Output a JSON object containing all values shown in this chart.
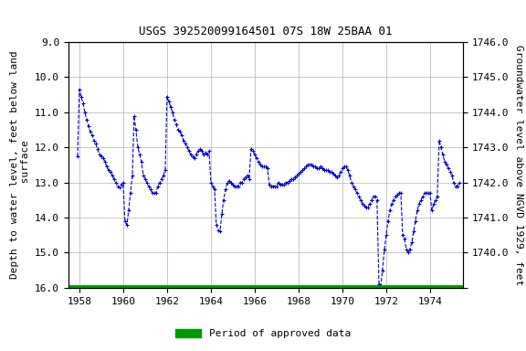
{
  "title": "USGS 392520099164501 07S 18W 25BAA 01",
  "ylabel_left": "Depth to water level, feet below land\n surface",
  "ylabel_right": "Groundwater level above NGVD 1929, feet",
  "ylim_left": [
    9.0,
    16.0
  ],
  "xlim": [
    1957.5,
    1975.5
  ],
  "yticks_left": [
    9.0,
    10.0,
    11.0,
    12.0,
    13.0,
    14.0,
    15.0,
    16.0
  ],
  "yticks_right_labels": [
    "1746.0",
    "1745.0",
    "1744.0",
    "1743.0",
    "1742.0",
    "1741.0",
    "1740.0",
    ""
  ],
  "yticks_right_pos": [
    9.0,
    10.0,
    11.0,
    12.0,
    13.0,
    14.0,
    15.0,
    16.0
  ],
  "xticks": [
    1958,
    1960,
    1962,
    1964,
    1966,
    1968,
    1970,
    1972,
    1974
  ],
  "line_color": "#0000cc",
  "marker": "+",
  "linestyle": "--",
  "green_line_y": 16.0,
  "legend_label": "Period of approved data",
  "legend_color": "#009900",
  "background_color": "#ffffff",
  "grid_color": "#b0b0b0",
  "title_fontsize": 9,
  "axis_label_fontsize": 8,
  "tick_fontsize": 8,
  "data_x": [
    1957.92,
    1958.0,
    1958.08,
    1958.17,
    1958.25,
    1958.33,
    1958.42,
    1958.5,
    1958.58,
    1958.67,
    1958.75,
    1958.83,
    1958.92,
    1959.0,
    1959.08,
    1959.17,
    1959.25,
    1959.33,
    1959.42,
    1959.5,
    1959.58,
    1959.67,
    1959.75,
    1959.83,
    1959.92,
    1960.0,
    1960.08,
    1960.17,
    1960.25,
    1960.33,
    1960.42,
    1960.5,
    1960.58,
    1960.67,
    1960.75,
    1960.83,
    1960.92,
    1961.0,
    1961.08,
    1961.17,
    1961.25,
    1961.33,
    1961.42,
    1961.5,
    1961.58,
    1961.67,
    1961.75,
    1961.83,
    1961.92,
    1962.0,
    1962.08,
    1962.17,
    1962.25,
    1962.33,
    1962.42,
    1962.5,
    1962.58,
    1962.67,
    1962.75,
    1962.83,
    1962.92,
    1963.0,
    1963.08,
    1963.17,
    1963.25,
    1963.33,
    1963.42,
    1963.5,
    1963.58,
    1963.67,
    1963.75,
    1963.83,
    1963.92,
    1964.0,
    1964.08,
    1964.17,
    1964.25,
    1964.33,
    1964.42,
    1964.5,
    1964.58,
    1964.67,
    1964.75,
    1964.83,
    1964.92,
    1965.0,
    1965.08,
    1965.17,
    1965.25,
    1965.33,
    1965.42,
    1965.5,
    1965.58,
    1965.67,
    1965.75,
    1965.83,
    1965.92,
    1966.0,
    1966.08,
    1966.17,
    1966.25,
    1966.33,
    1966.42,
    1966.5,
    1966.58,
    1966.67,
    1966.75,
    1966.83,
    1966.92,
    1967.0,
    1967.08,
    1967.17,
    1967.25,
    1967.33,
    1967.42,
    1967.5,
    1967.58,
    1967.67,
    1967.75,
    1967.83,
    1967.92,
    1968.0,
    1968.08,
    1968.17,
    1968.25,
    1968.33,
    1968.42,
    1968.5,
    1968.58,
    1968.67,
    1968.75,
    1968.83,
    1968.92,
    1969.0,
    1969.08,
    1969.17,
    1969.25,
    1969.33,
    1969.42,
    1969.5,
    1969.58,
    1969.67,
    1969.75,
    1969.83,
    1969.92,
    1970.0,
    1970.08,
    1970.17,
    1970.25,
    1970.33,
    1970.42,
    1970.5,
    1970.58,
    1970.67,
    1970.75,
    1970.83,
    1970.92,
    1971.0,
    1971.08,
    1971.17,
    1971.25,
    1971.33,
    1971.42,
    1971.5,
    1971.58,
    1971.67,
    1971.75,
    1971.83,
    1971.92,
    1972.0,
    1972.08,
    1972.17,
    1972.25,
    1972.33,
    1972.42,
    1972.5,
    1972.58,
    1972.67,
    1972.75,
    1972.83,
    1972.92,
    1973.0,
    1973.08,
    1973.17,
    1973.25,
    1973.33,
    1973.42,
    1973.5,
    1973.58,
    1973.67,
    1973.75,
    1973.83,
    1973.92,
    1974.0,
    1974.08,
    1974.17,
    1974.25,
    1974.33,
    1974.42,
    1974.5,
    1974.58,
    1974.67,
    1974.75,
    1974.83,
    1974.92,
    1975.0,
    1975.08,
    1975.17,
    1975.25,
    1975.33
  ],
  "data_y": [
    12.25,
    10.35,
    10.55,
    10.75,
    11.0,
    11.2,
    11.4,
    11.55,
    11.65,
    11.8,
    11.9,
    12.05,
    12.2,
    12.25,
    12.3,
    12.4,
    12.55,
    12.65,
    12.7,
    12.8,
    12.9,
    13.0,
    13.1,
    13.15,
    13.05,
    13.0,
    14.1,
    14.2,
    13.8,
    13.3,
    12.8,
    11.1,
    11.5,
    12.0,
    12.2,
    12.4,
    12.8,
    12.9,
    13.0,
    13.1,
    13.2,
    13.3,
    13.3,
    13.3,
    13.1,
    13.0,
    12.9,
    12.8,
    12.65,
    10.55,
    10.7,
    10.85,
    11.0,
    11.2,
    11.35,
    11.5,
    11.55,
    11.65,
    11.8,
    11.9,
    12.0,
    12.1,
    12.2,
    12.25,
    12.3,
    12.2,
    12.1,
    12.05,
    12.1,
    12.2,
    12.15,
    12.2,
    12.1,
    13.0,
    13.1,
    13.2,
    14.2,
    14.35,
    14.4,
    13.9,
    13.5,
    13.2,
    13.0,
    12.95,
    13.0,
    13.05,
    13.1,
    13.1,
    13.1,
    13.0,
    13.0,
    12.9,
    12.85,
    12.8,
    12.9,
    12.05,
    12.1,
    12.2,
    12.3,
    12.4,
    12.5,
    12.55,
    12.55,
    12.55,
    12.6,
    13.05,
    13.1,
    13.1,
    13.1,
    13.1,
    13.0,
    13.05,
    13.05,
    13.05,
    13.0,
    13.0,
    12.95,
    12.9,
    12.9,
    12.85,
    12.8,
    12.75,
    12.7,
    12.65,
    12.6,
    12.55,
    12.5,
    12.5,
    12.5,
    12.55,
    12.55,
    12.6,
    12.6,
    12.55,
    12.6,
    12.65,
    12.65,
    12.65,
    12.7,
    12.7,
    12.75,
    12.8,
    12.85,
    12.8,
    12.7,
    12.6,
    12.55,
    12.55,
    12.65,
    12.8,
    13.0,
    13.1,
    13.2,
    13.3,
    13.4,
    13.5,
    13.6,
    13.65,
    13.7,
    13.7,
    13.6,
    13.5,
    13.4,
    13.4,
    13.5,
    15.9,
    15.95,
    15.5,
    14.9,
    14.5,
    14.1,
    13.8,
    13.6,
    13.5,
    13.4,
    13.35,
    13.3,
    13.3,
    14.5,
    14.6,
    14.9,
    15.0,
    14.9,
    14.7,
    14.4,
    14.1,
    13.8,
    13.6,
    13.5,
    13.4,
    13.3,
    13.3,
    13.3,
    13.3,
    13.8,
    13.6,
    13.5,
    13.4,
    11.8,
    12.0,
    12.2,
    12.4,
    12.5,
    12.6,
    12.7,
    12.8,
    13.0,
    13.1,
    13.1,
    13.0
  ]
}
